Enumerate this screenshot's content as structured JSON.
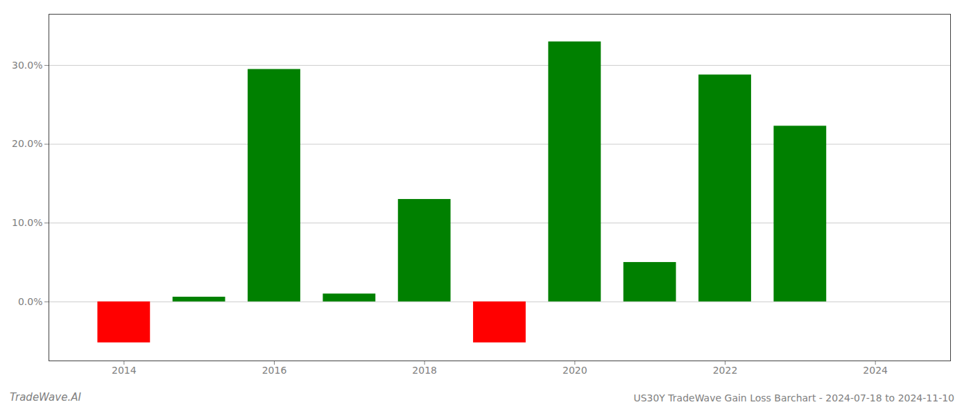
{
  "chart_data": {
    "type": "bar",
    "title": "US30Y TradeWave Gain Loss Barchart - 2024-07-18 to 2024-11-10",
    "annotations": [
      "TradeWave.AI"
    ],
    "x": [
      2014,
      2015,
      2016,
      2017,
      2018,
      2019,
      2020,
      2021,
      2022,
      2023
    ],
    "values": [
      -5.2,
      0.6,
      29.5,
      1.0,
      13.0,
      -5.2,
      33.0,
      5.0,
      28.8,
      22.3
    ],
    "colors": [
      "#ff0000",
      "#008000",
      "#008000",
      "#008000",
      "#008000",
      "#ff0000",
      "#008000",
      "#008000",
      "#008000",
      "#008000"
    ],
    "xlim": [
      2013.0,
      2025.0
    ],
    "xticks": [
      2014,
      2016,
      2018,
      2020,
      2022,
      2024
    ],
    "ylim": [
      -7.5,
      36.5
    ],
    "yticks": [
      {
        "value": 0.0,
        "label": "0.0%"
      },
      {
        "value": 10.0,
        "label": "10.0%"
      },
      {
        "value": 20.0,
        "label": "20.0%"
      },
      {
        "value": 30.0,
        "label": "30.0%"
      }
    ],
    "grid": true
  }
}
